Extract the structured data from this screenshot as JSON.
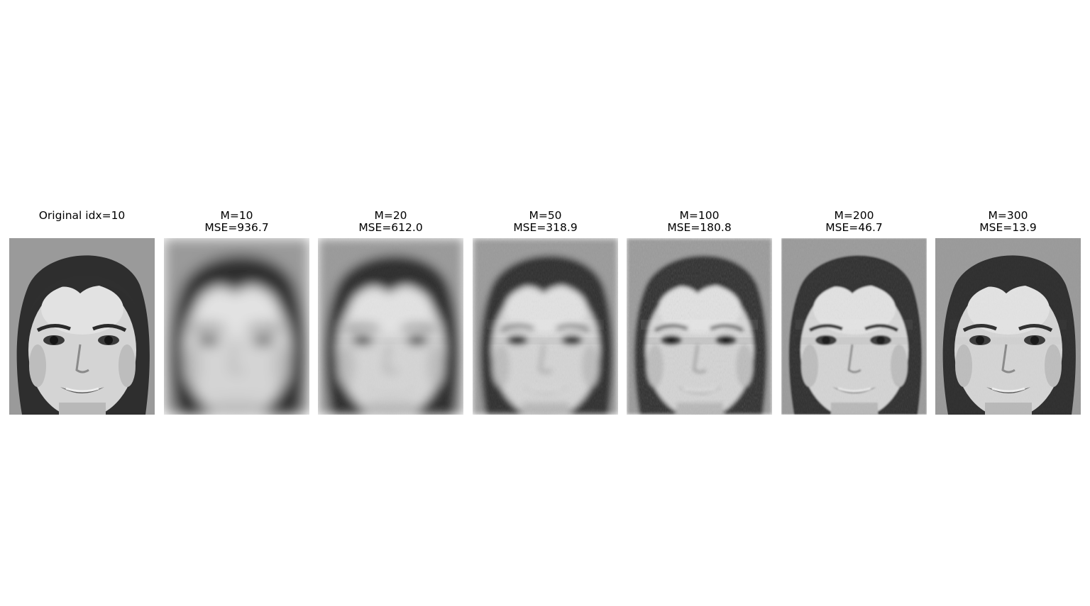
{
  "panels": [
    {
      "title_lines": [
        "",
        "Original idx=10"
      ],
      "blur": 0.0,
      "noise": 0.0
    },
    {
      "title_lines": [
        "M=10",
        "MSE=936.7"
      ],
      "blur": 9.0,
      "noise": 0.0
    },
    {
      "title_lines": [
        "M=20",
        "MSE=612.0"
      ],
      "blur": 7.0,
      "noise": 0.05
    },
    {
      "title_lines": [
        "M=50",
        "MSE=318.9"
      ],
      "blur": 4.2,
      "noise": 0.12
    },
    {
      "title_lines": [
        "M=100",
        "MSE=180.8"
      ],
      "blur": 2.6,
      "noise": 0.18
    },
    {
      "title_lines": [
        "M=200",
        "MSE=46.7"
      ],
      "blur": 1.0,
      "noise": 0.12
    },
    {
      "title_lines": [
        "M=300",
        "MSE=13.9"
      ],
      "blur": 0.3,
      "noise": 0.05
    }
  ]
}
